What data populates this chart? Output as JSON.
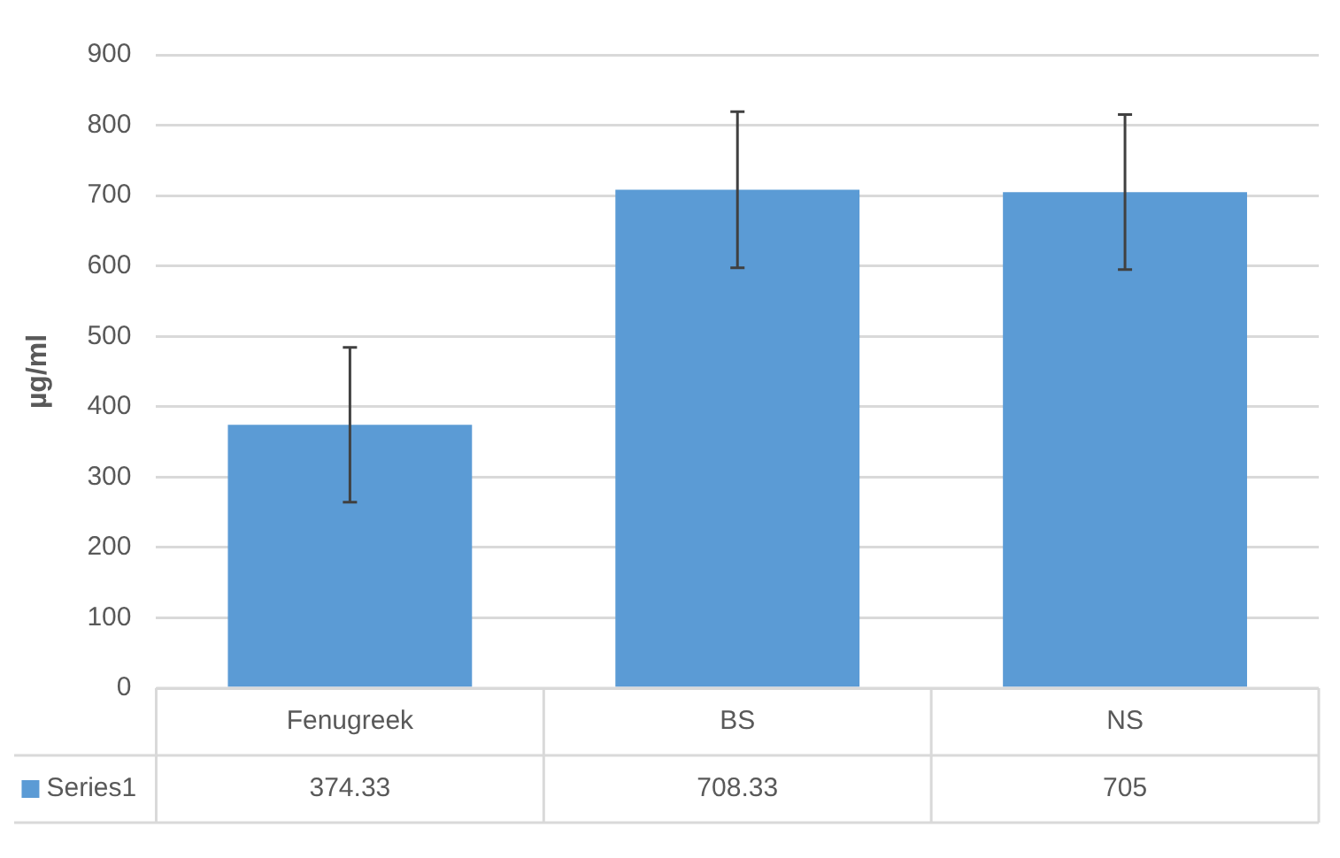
{
  "chart_data": {
    "type": "bar",
    "ylabel": "µg/ml",
    "categories": [
      "Fenugreek",
      "BS",
      "NS"
    ],
    "series": [
      {
        "name": "Series1",
        "color": "#5b9bd5",
        "values": [
          374.33,
          708.33,
          705
        ],
        "errors": [
          110,
          111,
          110
        ]
      }
    ],
    "ylim": [
      0,
      900
    ],
    "yticks": [
      0,
      100,
      200,
      300,
      400,
      500,
      600,
      700,
      800,
      900
    ],
    "grid": "y",
    "legend": "bottom",
    "data_labels": true
  }
}
